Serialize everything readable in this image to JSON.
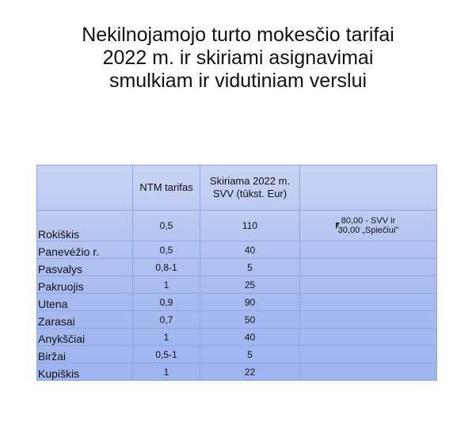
{
  "title": [
    "Nekilnojamojo turto mokesčio tarifai",
    "2022 m. ir skiriami asignavimai",
    "smulkiam ir vidutiniam verslui"
  ],
  "table": {
    "headers": [
      "",
      "NTM tarifas",
      "Skiriama 2022 m. SVV (tūkst. Eur)",
      ""
    ],
    "rows": [
      {
        "name": "Rokiškis",
        "rate": "0,5",
        "amount": "110",
        "note1": "80,00 - SVV ir",
        "note2": "30,00 „Spiečiui\""
      },
      {
        "name": "Panevėžio r.",
        "rate": "0,5",
        "amount": "40"
      },
      {
        "name": "Pasvalys",
        "rate": "0,8-1",
        "amount": "5"
      },
      {
        "name": "Pakruojis",
        "rate": "1",
        "amount": "25"
      },
      {
        "name": "Utena",
        "rate": "0,9",
        "amount": "90"
      },
      {
        "name": "Zarasai",
        "rate": "0,7",
        "amount": "50"
      },
      {
        "name": "Anykščiai",
        "rate": "1",
        "amount": "40"
      },
      {
        "name": "Biržai",
        "rate": "0,5-1",
        "amount": "5"
      },
      {
        "name": "Kupiškis",
        "rate": "1",
        "amount": "22"
      }
    ]
  },
  "colors": {
    "table_fill": "#a8bbf0",
    "table_border": "#8fa6e4"
  },
  "icons": [
    "mouse-cursor-icon"
  ]
}
